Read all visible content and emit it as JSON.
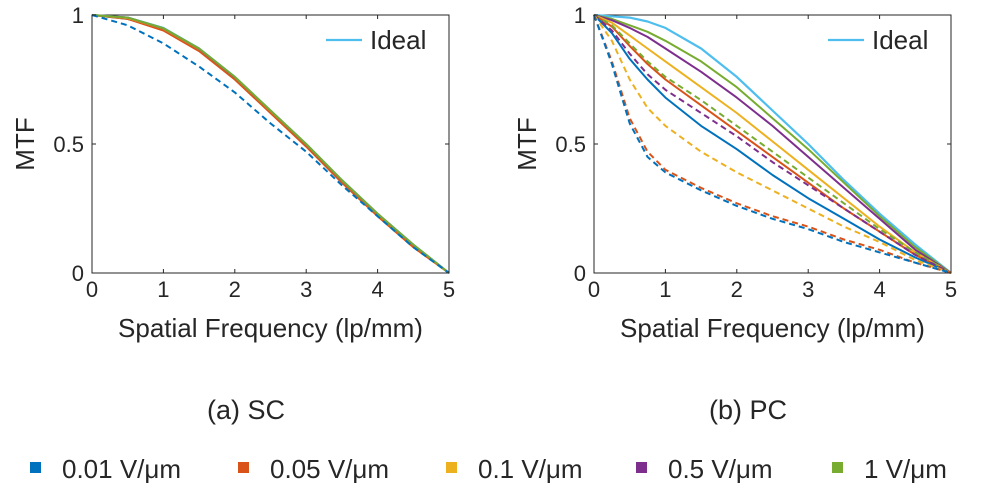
{
  "colors": {
    "ideal": "#4DBEEE",
    "0.01": "#0072BD",
    "0.05": "#D95319",
    "0.1": "#EDB120",
    "0.5": "#7E2F8E",
    "1": "#77AC30",
    "axis": "#262626"
  },
  "legend_bottom": [
    {
      "key": "0.01",
      "label": "0.01 V/μm"
    },
    {
      "key": "0.05",
      "label": "0.05 V/μm"
    },
    {
      "key": "0.1",
      "label": "0.1 V/μm"
    },
    {
      "key": "0.5",
      "label": "0.5 V/μm"
    },
    {
      "key": "1",
      "label": "1 V/μm"
    }
  ],
  "chart_data": [
    {
      "type": "line",
      "id": "sc",
      "caption": "(a) SC",
      "xlabel": "Spatial Frequency (lp/mm)",
      "ylabel": "MTF",
      "xlim": [
        0,
        5
      ],
      "ylim": [
        0,
        1
      ],
      "xticks": [
        "0",
        "1",
        "2",
        "3",
        "4",
        "5"
      ],
      "yticks": [
        "0",
        "0.5",
        "1"
      ],
      "legend": {
        "label": "Ideal",
        "position": "top-right"
      },
      "x": [
        0,
        0.5,
        1,
        1.5,
        2,
        2.5,
        3,
        3.5,
        4,
        4.5,
        5
      ],
      "series": [
        {
          "name": "Ideal",
          "key": "ideal",
          "dashed": false,
          "values": [
            1.0,
            0.99,
            0.95,
            0.87,
            0.76,
            0.63,
            0.5,
            0.36,
            0.23,
            0.11,
            0.0
          ]
        },
        {
          "name": "0.01 V/μm",
          "key": "0.01",
          "dashed": false,
          "values": [
            1.0,
            0.985,
            0.945,
            0.865,
            0.755,
            0.625,
            0.495,
            0.355,
            0.225,
            0.105,
            0.0
          ]
        },
        {
          "name": "0.05 V/μm",
          "key": "0.05",
          "dashed": false,
          "values": [
            1.0,
            0.985,
            0.94,
            0.86,
            0.75,
            0.62,
            0.49,
            0.35,
            0.22,
            0.1,
            0.0
          ]
        },
        {
          "name": "0.1 V/μm",
          "key": "0.1",
          "dashed": false,
          "values": [
            1.0,
            0.988,
            0.947,
            0.868,
            0.758,
            0.628,
            0.498,
            0.358,
            0.228,
            0.108,
            0.0
          ]
        },
        {
          "name": "0.5 V/μm",
          "key": "0.5",
          "dashed": false,
          "values": [
            1.0,
            0.99,
            0.948,
            0.869,
            0.759,
            0.629,
            0.499,
            0.359,
            0.229,
            0.109,
            0.0
          ]
        },
        {
          "name": "1 V/μm",
          "key": "1",
          "dashed": false,
          "values": [
            1.0,
            0.99,
            0.949,
            0.87,
            0.76,
            0.63,
            0.5,
            0.36,
            0.23,
            0.11,
            0.0
          ]
        },
        {
          "name": "0.01 V/μm (dashed)",
          "key": "0.01",
          "dashed": true,
          "values": [
            1.0,
            0.96,
            0.89,
            0.8,
            0.7,
            0.58,
            0.47,
            0.34,
            0.22,
            0.1,
            0.0
          ]
        }
      ]
    },
    {
      "type": "line",
      "id": "pc",
      "caption": "(b) PC",
      "xlabel": "Spatial Frequency (lp/mm)",
      "ylabel": "MTF",
      "xlim": [
        0,
        5
      ],
      "ylim": [
        0,
        1
      ],
      "xticks": [
        "0",
        "1",
        "2",
        "3",
        "4",
        "5"
      ],
      "yticks": [
        "0",
        "0.5",
        "1"
      ],
      "legend": {
        "label": "Ideal",
        "position": "top-right"
      },
      "x": [
        0,
        0.25,
        0.5,
        0.75,
        1,
        1.5,
        2,
        2.5,
        3,
        3.5,
        4,
        4.5,
        5
      ],
      "series": [
        {
          "name": "Ideal",
          "key": "ideal",
          "dashed": false,
          "values": [
            1.0,
            0.995,
            0.99,
            0.975,
            0.95,
            0.87,
            0.76,
            0.63,
            0.5,
            0.36,
            0.23,
            0.11,
            0.0
          ]
        },
        {
          "name": "1 V/μm",
          "key": "1",
          "dashed": false,
          "values": [
            1.0,
            0.985,
            0.96,
            0.935,
            0.9,
            0.82,
            0.72,
            0.6,
            0.48,
            0.35,
            0.22,
            0.1,
            0.0
          ]
        },
        {
          "name": "0.5 V/μm",
          "key": "0.5",
          "dashed": false,
          "values": [
            1.0,
            0.98,
            0.95,
            0.915,
            0.87,
            0.78,
            0.68,
            0.57,
            0.45,
            0.33,
            0.21,
            0.09,
            0.0
          ]
        },
        {
          "name": "0.1 V/μm",
          "key": "0.1",
          "dashed": false,
          "values": [
            1.0,
            0.97,
            0.92,
            0.87,
            0.82,
            0.72,
            0.62,
            0.51,
            0.4,
            0.29,
            0.18,
            0.08,
            0.0
          ]
        },
        {
          "name": "0.05 V/μm",
          "key": "0.05",
          "dashed": false,
          "values": [
            1.0,
            0.955,
            0.88,
            0.81,
            0.75,
            0.65,
            0.55,
            0.45,
            0.35,
            0.25,
            0.16,
            0.07,
            0.0
          ]
        },
        {
          "name": "0.01 V/μm",
          "key": "0.01",
          "dashed": false,
          "values": [
            1.0,
            0.93,
            0.83,
            0.75,
            0.68,
            0.57,
            0.48,
            0.38,
            0.29,
            0.21,
            0.13,
            0.06,
            0.0
          ]
        },
        {
          "name": "1 V/μm (dashed)",
          "key": "1",
          "dashed": true,
          "values": [
            1.0,
            0.96,
            0.89,
            0.82,
            0.76,
            0.67,
            0.57,
            0.47,
            0.37,
            0.27,
            0.17,
            0.08,
            0.0
          ]
        },
        {
          "name": "0.5 V/μm (dashed)",
          "key": "0.5",
          "dashed": true,
          "values": [
            1.0,
            0.94,
            0.85,
            0.77,
            0.71,
            0.62,
            0.53,
            0.43,
            0.34,
            0.25,
            0.16,
            0.07,
            0.0
          ]
        },
        {
          "name": "0.1 V/μm (dashed)",
          "key": "0.1",
          "dashed": true,
          "values": [
            1.0,
            0.9,
            0.75,
            0.64,
            0.57,
            0.47,
            0.39,
            0.32,
            0.25,
            0.18,
            0.12,
            0.05,
            0.0
          ]
        },
        {
          "name": "0.05 V/μm (dashed)",
          "key": "0.05",
          "dashed": true,
          "values": [
            1.0,
            0.82,
            0.6,
            0.47,
            0.4,
            0.33,
            0.27,
            0.22,
            0.18,
            0.13,
            0.09,
            0.04,
            0.0
          ]
        },
        {
          "name": "0.01 V/μm (dashed)",
          "key": "0.01",
          "dashed": true,
          "values": [
            1.0,
            0.81,
            0.58,
            0.45,
            0.39,
            0.32,
            0.26,
            0.21,
            0.17,
            0.12,
            0.08,
            0.04,
            0.0
          ]
        }
      ]
    }
  ]
}
